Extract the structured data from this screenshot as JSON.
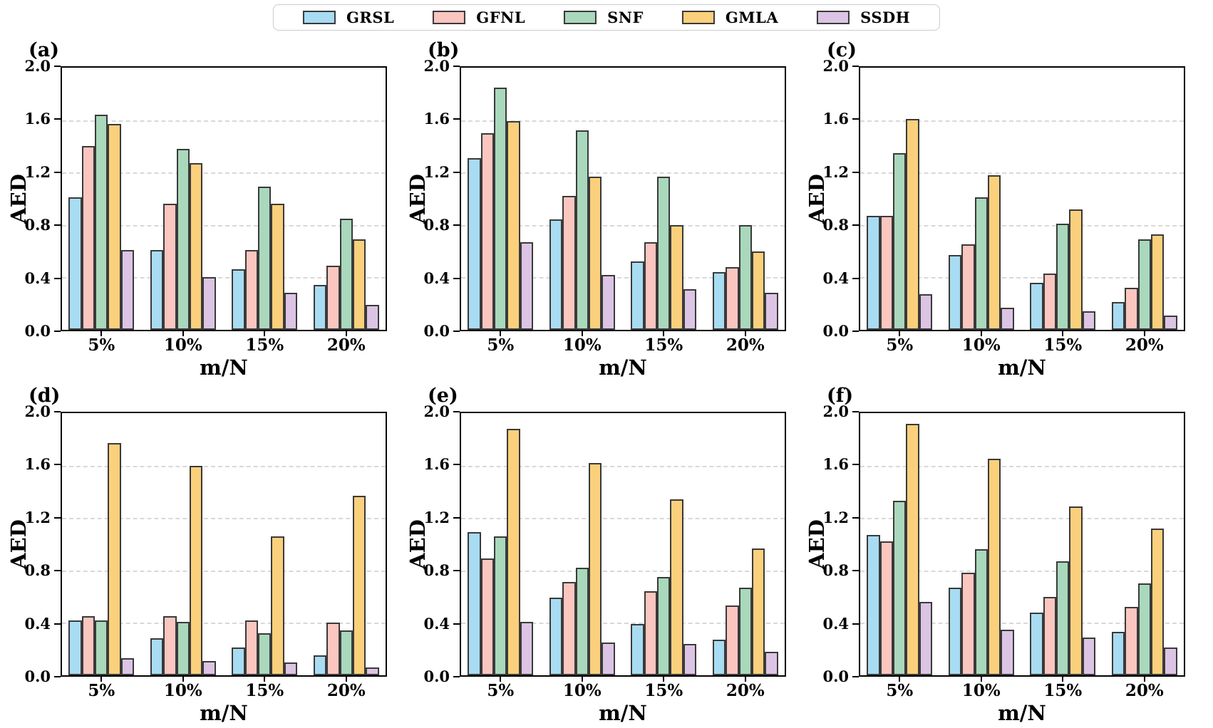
{
  "figure": {
    "background": "#ffffff"
  },
  "colors": {
    "bar_edge": "#3a3a3a",
    "grid": "#d8d8d8",
    "axis": "#000000",
    "legend_border": "#cccccc"
  },
  "legend": {
    "position": "top-center",
    "items": [
      {
        "label": "GRSL",
        "color": "#a8dcf2"
      },
      {
        "label": "GFNL",
        "color": "#fbc6c0"
      },
      {
        "label": "SNF",
        "color": "#a9d8bc"
      },
      {
        "label": "GMLA",
        "color": "#fad07c"
      },
      {
        "label": "SSDH",
        "color": "#dcc4e4"
      }
    ]
  },
  "chart_data": [
    {
      "type": "bar",
      "panel_label": "(a)",
      "xlabel": "m/N",
      "ylabel": "AED",
      "categories": [
        "5%",
        "10%",
        "15%",
        "20%"
      ],
      "ylim": [
        0,
        2.0
      ],
      "yticks": [
        0.0,
        0.4,
        0.8,
        1.2,
        1.6,
        2.0
      ],
      "yticklabels": [
        "0.0",
        "0.4",
        "0.8",
        "1.2",
        "1.6",
        "2.0"
      ],
      "grid": "dashed-horizontal",
      "series": [
        {
          "name": "GRSL",
          "values": [
            1.01,
            0.61,
            0.46,
            0.34
          ]
        },
        {
          "name": "GFNL",
          "values": [
            1.4,
            0.96,
            0.61,
            0.49
          ]
        },
        {
          "name": "SNF",
          "values": [
            1.64,
            1.38,
            1.09,
            0.85
          ]
        },
        {
          "name": "GMLA",
          "values": [
            1.57,
            1.27,
            0.96,
            0.69
          ]
        },
        {
          "name": "SSDH",
          "values": [
            0.61,
            0.4,
            0.28,
            0.19
          ]
        }
      ]
    },
    {
      "type": "bar",
      "panel_label": "(b)",
      "xlabel": "m/N",
      "ylabel": "AED",
      "categories": [
        "5%",
        "10%",
        "15%",
        "20%"
      ],
      "ylim": [
        0,
        2.0
      ],
      "yticks": [
        0.0,
        0.4,
        0.8,
        1.2,
        1.6,
        2.0
      ],
      "yticklabels": [
        "0.0",
        "0.4",
        "0.8",
        "1.2",
        "1.6",
        "2.0"
      ],
      "grid": "dashed-horizontal",
      "series": [
        {
          "name": "GRSL",
          "values": [
            1.31,
            0.84,
            0.52,
            0.44
          ]
        },
        {
          "name": "GFNL",
          "values": [
            1.5,
            1.02,
            0.67,
            0.48
          ]
        },
        {
          "name": "SNF",
          "values": [
            1.85,
            1.52,
            1.17,
            0.8
          ]
        },
        {
          "name": "GMLA",
          "values": [
            1.59,
            1.17,
            0.8,
            0.6
          ]
        },
        {
          "name": "SSDH",
          "values": [
            0.67,
            0.42,
            0.31,
            0.28
          ]
        }
      ]
    },
    {
      "type": "bar",
      "panel_label": "(c)",
      "xlabel": "m/N",
      "ylabel": "AED",
      "categories": [
        "5%",
        "10%",
        "15%",
        "20%"
      ],
      "ylim": [
        0,
        2.0
      ],
      "yticks": [
        0.0,
        0.4,
        0.8,
        1.2,
        1.6,
        2.0
      ],
      "yticklabels": [
        "0.0",
        "0.4",
        "0.8",
        "1.2",
        "1.6",
        "2.0"
      ],
      "grid": "dashed-horizontal",
      "series": [
        {
          "name": "GRSL",
          "values": [
            0.87,
            0.57,
            0.36,
            0.21
          ]
        },
        {
          "name": "GFNL",
          "values": [
            0.87,
            0.65,
            0.43,
            0.32
          ]
        },
        {
          "name": "SNF",
          "values": [
            1.35,
            1.01,
            0.81,
            0.69
          ]
        },
        {
          "name": "GMLA",
          "values": [
            1.61,
            1.18,
            0.92,
            0.73
          ]
        },
        {
          "name": "SSDH",
          "values": [
            0.27,
            0.17,
            0.14,
            0.11
          ]
        }
      ]
    },
    {
      "type": "bar",
      "panel_label": "(d)",
      "xlabel": "m/N",
      "ylabel": "AED",
      "categories": [
        "5%",
        "10%",
        "15%",
        "20%"
      ],
      "ylim": [
        0,
        2.0
      ],
      "yticks": [
        0.0,
        0.4,
        0.8,
        1.2,
        1.6,
        2.0
      ],
      "yticklabels": [
        "0.0",
        "0.4",
        "0.8",
        "1.2",
        "1.6",
        "2.0"
      ],
      "grid": "dashed-horizontal",
      "series": [
        {
          "name": "GRSL",
          "values": [
            0.42,
            0.28,
            0.21,
            0.15
          ]
        },
        {
          "name": "GFNL",
          "values": [
            0.45,
            0.45,
            0.42,
            0.4
          ]
        },
        {
          "name": "SNF",
          "values": [
            0.42,
            0.41,
            0.32,
            0.34
          ]
        },
        {
          "name": "GMLA",
          "values": [
            1.77,
            1.6,
            1.06,
            1.37
          ]
        },
        {
          "name": "SSDH",
          "values": [
            0.13,
            0.11,
            0.1,
            0.06
          ]
        }
      ]
    },
    {
      "type": "bar",
      "panel_label": "(e)",
      "xlabel": "m/N",
      "ylabel": "AED",
      "categories": [
        "5%",
        "10%",
        "15%",
        "20%"
      ],
      "ylim": [
        0,
        2.0
      ],
      "yticks": [
        0.0,
        0.4,
        0.8,
        1.2,
        1.6,
        2.0
      ],
      "yticklabels": [
        "0.0",
        "0.4",
        "0.8",
        "1.2",
        "1.6",
        "2.0"
      ],
      "grid": "dashed-horizontal",
      "series": [
        {
          "name": "GRSL",
          "values": [
            1.09,
            0.59,
            0.39,
            0.27
          ]
        },
        {
          "name": "GFNL",
          "values": [
            0.89,
            0.71,
            0.64,
            0.53
          ]
        },
        {
          "name": "SNF",
          "values": [
            1.06,
            0.82,
            0.75,
            0.67
          ]
        },
        {
          "name": "GMLA",
          "values": [
            1.88,
            1.62,
            1.34,
            0.97
          ]
        },
        {
          "name": "SSDH",
          "values": [
            0.41,
            0.25,
            0.24,
            0.18
          ]
        }
      ]
    },
    {
      "type": "bar",
      "panel_label": "(f)",
      "xlabel": "m/N",
      "ylabel": "AED",
      "categories": [
        "5%",
        "10%",
        "15%",
        "20%"
      ],
      "ylim": [
        0,
        2.0
      ],
      "yticks": [
        0.0,
        0.4,
        0.8,
        1.2,
        1.6,
        2.0
      ],
      "yticklabels": [
        "0.0",
        "0.4",
        "0.8",
        "1.2",
        "1.6",
        "2.0"
      ],
      "grid": "dashed-horizontal",
      "series": [
        {
          "name": "GRSL",
          "values": [
            1.07,
            0.67,
            0.48,
            0.33
          ]
        },
        {
          "name": "GFNL",
          "values": [
            1.02,
            0.78,
            0.6,
            0.52
          ]
        },
        {
          "name": "SNF",
          "values": [
            1.33,
            0.96,
            0.87,
            0.7
          ]
        },
        {
          "name": "GMLA",
          "values": [
            1.92,
            1.65,
            1.29,
            1.12
          ]
        },
        {
          "name": "SSDH",
          "values": [
            0.56,
            0.35,
            0.29,
            0.21
          ]
        }
      ]
    }
  ]
}
